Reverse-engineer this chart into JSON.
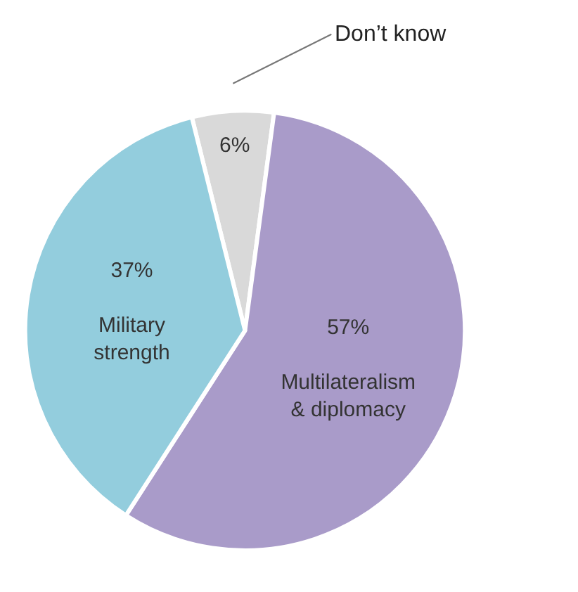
{
  "chart_data": {
    "type": "pie",
    "categories": [
      "Don’t know",
      "Multilateralism & diplomacy",
      "Military strength"
    ],
    "values": [
      6,
      57,
      37
    ],
    "value_labels": [
      "6%",
      "57%",
      "37%"
    ],
    "colors": [
      "#d9d9d9",
      "#a99bc9",
      "#93cddd"
    ],
    "legend": false
  }
}
